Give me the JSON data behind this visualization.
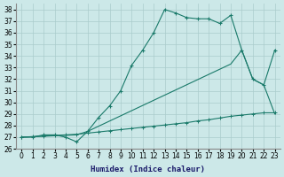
{
  "xlabel": "Humidex (Indice chaleur)",
  "ylabel": "",
  "xlim": [
    -0.5,
    23.5
  ],
  "ylim": [
    26,
    38.5
  ],
  "yticks": [
    26,
    27,
    28,
    29,
    30,
    31,
    32,
    33,
    34,
    35,
    36,
    37,
    38
  ],
  "xticks": [
    0,
    1,
    2,
    3,
    4,
    5,
    6,
    7,
    8,
    9,
    10,
    11,
    12,
    13,
    14,
    15,
    16,
    17,
    18,
    19,
    20,
    21,
    22,
    23
  ],
  "bg_color": "#cce8e8",
  "grid_color": "#aacccc",
  "line_color": "#1a7a6a",
  "line1_x": [
    0,
    1,
    2,
    3,
    4,
    5,
    6,
    7,
    8,
    9,
    10,
    11,
    12,
    13,
    14,
    15,
    16,
    17,
    18,
    19,
    20,
    21,
    22,
    23
  ],
  "line1_y": [
    27.0,
    27.0,
    27.2,
    27.2,
    27.0,
    26.6,
    27.5,
    28.7,
    29.7,
    31.0,
    33.2,
    34.5,
    36.0,
    38.0,
    37.7,
    37.3,
    37.2,
    37.2,
    36.8,
    37.5,
    34.5,
    32.0,
    31.5,
    34.5
  ],
  "line2_x": [
    0,
    5,
    6,
    19,
    20,
    21,
    22,
    23
  ],
  "line2_y": [
    27.0,
    27.2,
    27.5,
    33.3,
    34.5,
    32.0,
    31.5,
    29.0
  ],
  "line3_x": [
    0,
    1,
    2,
    3,
    4,
    5,
    6,
    7,
    8,
    9,
    10,
    11,
    12,
    13,
    14,
    15,
    16,
    17,
    18,
    19,
    20,
    21,
    22,
    23
  ],
  "line3_y": [
    27.0,
    27.05,
    27.1,
    27.15,
    27.2,
    27.25,
    27.35,
    27.45,
    27.55,
    27.65,
    27.75,
    27.85,
    27.95,
    28.05,
    28.15,
    28.25,
    28.4,
    28.5,
    28.65,
    28.8,
    28.9,
    29.0,
    29.1,
    29.1
  ]
}
